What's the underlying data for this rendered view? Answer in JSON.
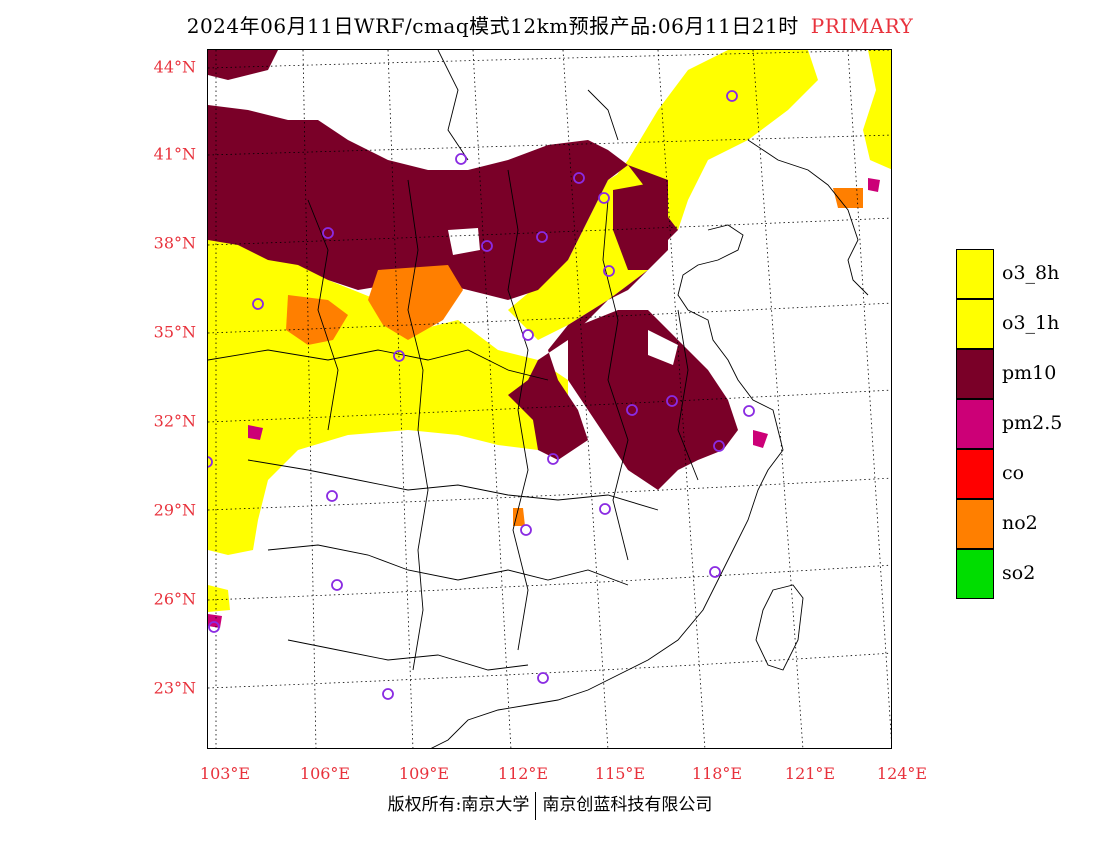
{
  "title": {
    "main": "2024年06月11日WRF/cmaq模式12km预报产品:06月11日21时",
    "tag": "PRIMARY"
  },
  "colors": {
    "o3_8h": "#ffff00",
    "o3_1h": "#ffff00",
    "pm10": "#7a0028",
    "pm25": "#cc0077",
    "co": "#ff0000",
    "no2": "#ff7f00",
    "so2": "#00dd00",
    "axis_label": "#e8323c"
  },
  "lat_labels": [
    "44°N",
    "41°N",
    "38°N",
    "35°N",
    "32°N",
    "29°N",
    "26°N",
    "23°N"
  ],
  "lon_labels": [
    "103°E",
    "106°E",
    "109°E",
    "112°E",
    "115°E",
    "118°E",
    "121°E",
    "124°E"
  ],
  "legend": [
    {
      "key": "o3_8h",
      "label": "o3_8h",
      "color": "#ffff00"
    },
    {
      "key": "o3_1h",
      "label": "o3_1h",
      "color": "#ffff00"
    },
    {
      "key": "pm10",
      "label": "pm10",
      "color": "#7a0028"
    },
    {
      "key": "pm25",
      "label": "pm2.5",
      "color": "#cc0077"
    },
    {
      "key": "co",
      "label": "co",
      "color": "#ff0000"
    },
    {
      "key": "no2",
      "label": "no2",
      "color": "#ff7f00"
    },
    {
      "key": "so2",
      "label": "so2",
      "color": "#00dd00"
    }
  ],
  "footer": {
    "left": "版权所有:南京大学",
    "right": "南京创蓝科技有限公司"
  }
}
